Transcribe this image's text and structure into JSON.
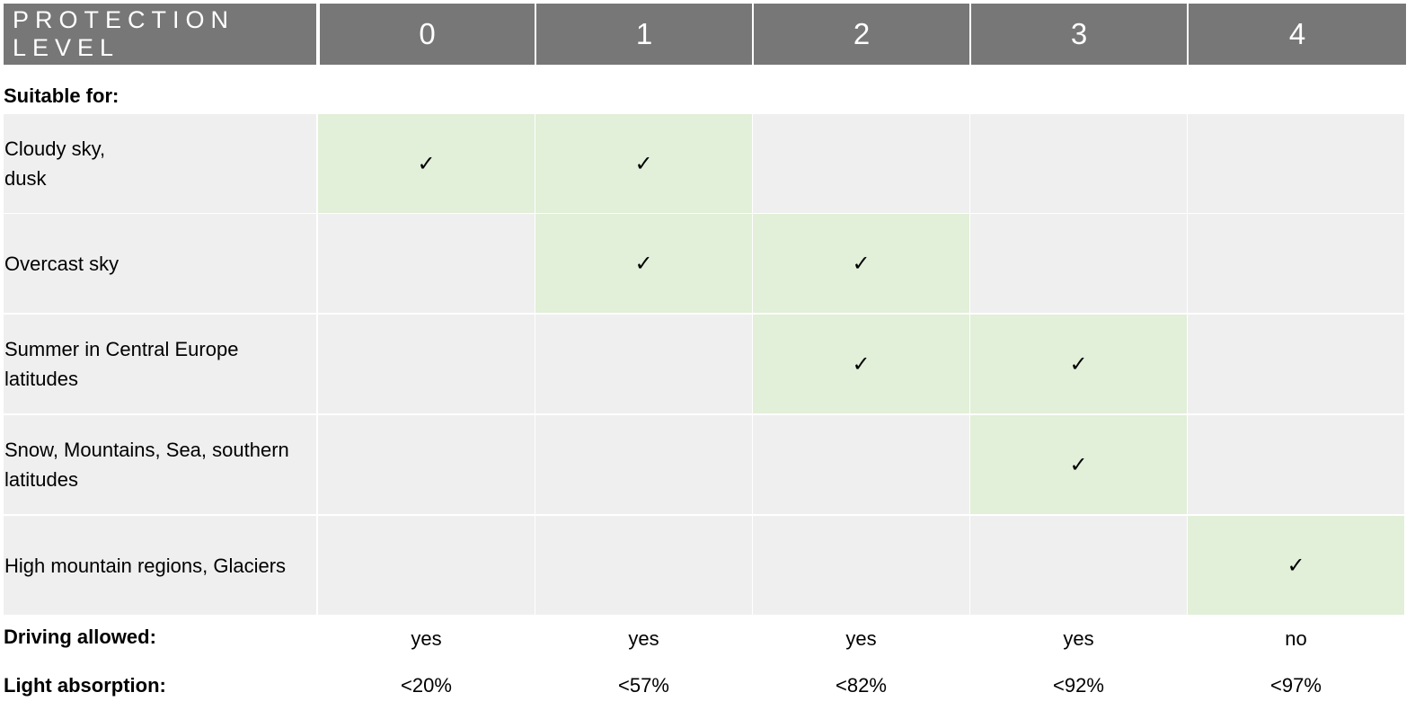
{
  "header": {
    "title": "PROTECTION LEVEL",
    "levels": [
      "0",
      "1",
      "2",
      "3",
      "4"
    ]
  },
  "suitable_label": "Suitable  for:",
  "check_glyph": "✓",
  "rows": [
    {
      "label": "Cloudy sky,\ndusk",
      "checks": [
        true,
        true,
        false,
        false,
        false
      ]
    },
    {
      "label": "Overcast sky",
      "checks": [
        false,
        true,
        true,
        false,
        false
      ]
    },
    {
      "label": "Summer in Central Europe\nlatitudes",
      "checks": [
        false,
        false,
        true,
        true,
        false
      ]
    },
    {
      "label": "Snow, Mountains, Sea, southern\nlatitudes",
      "checks": [
        false,
        false,
        false,
        true,
        false
      ]
    },
    {
      "label": "High mountain regions, Glaciers",
      "checks": [
        false,
        false,
        false,
        false,
        true
      ]
    }
  ],
  "driving": {
    "label": "Driving allowed:",
    "values": [
      "yes",
      "yes",
      "yes",
      "yes",
      "no"
    ]
  },
  "absorption": {
    "label": "Light absorption:",
    "values": [
      "<20%",
      "<57%",
      "<82%",
      "<92%",
      "<97%"
    ]
  },
  "colors": {
    "header_bg": "#777777",
    "cell_bg": "#efefef",
    "check_bg": "#e2efd9"
  }
}
